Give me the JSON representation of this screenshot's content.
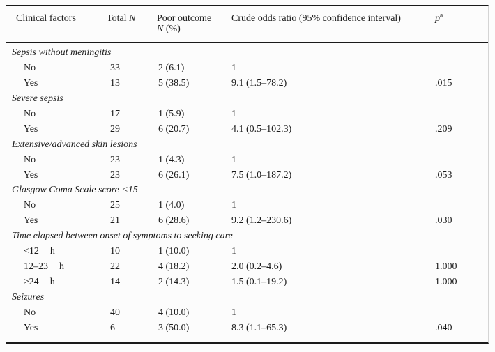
{
  "table": {
    "header": {
      "clinical_factors": "Clinical factors",
      "total_prefix": "Total ",
      "total_n_italic": "N",
      "poor_line1": "Poor outcome",
      "poor_line2_italic": "N",
      "poor_line2_rest": " (%)",
      "odds_ratio": "Crude odds ratio (95% confidence interval)",
      "p_italic": "p",
      "p_sup": "a"
    },
    "rows": [
      {
        "type": "category",
        "label": "Sepsis without meningitis"
      },
      {
        "type": "data",
        "label": "No",
        "unit": "",
        "total": "33",
        "poor": "2 (6.1)",
        "or": "1",
        "p": ""
      },
      {
        "type": "data",
        "label": "Yes",
        "unit": "",
        "total": "13",
        "poor": "5 (38.5)",
        "or": "9.1 (1.5–78.2)",
        "p": ".015"
      },
      {
        "type": "category",
        "label": "Severe sepsis"
      },
      {
        "type": "data",
        "label": "No",
        "unit": "",
        "total": "17",
        "poor": "1 (5.9)",
        "or": "1",
        "p": ""
      },
      {
        "type": "data",
        "label": "Yes",
        "unit": "",
        "total": "29",
        "poor": "6 (20.7)",
        "or": "4.1 (0.5–102.3)",
        "p": ".209"
      },
      {
        "type": "category",
        "label": "Extensive/advanced skin lesions"
      },
      {
        "type": "data",
        "label": "No",
        "unit": "",
        "total": "23",
        "poor": "1 (4.3)",
        "or": "1",
        "p": ""
      },
      {
        "type": "data",
        "label": "Yes",
        "unit": "",
        "total": "23",
        "poor": "6 (26.1)",
        "or": "7.5 (1.0–187.2)",
        "p": ".053"
      },
      {
        "type": "category",
        "label": "Glasgow Coma Scale score <15"
      },
      {
        "type": "data",
        "label": "No",
        "unit": "",
        "total": "25",
        "poor": "1 (4.0)",
        "or": "1",
        "p": ""
      },
      {
        "type": "data",
        "label": "Yes",
        "unit": "",
        "total": "21",
        "poor": "6 (28.6)",
        "or": "9.2 (1.2–230.6)",
        "p": ".030"
      },
      {
        "type": "category",
        "label": "Time elapsed between onset of symptoms to seeking care"
      },
      {
        "type": "data",
        "label": "<12",
        "unit": "h",
        "total": "10",
        "poor": "1 (10.0)",
        "or": "1",
        "p": ""
      },
      {
        "type": "data",
        "label": "12–23",
        "unit": "h",
        "total": "22",
        "poor": "4 (18.2)",
        "or": "2.0 (0.2–4.6)",
        "p": "1.000"
      },
      {
        "type": "data",
        "label": "≥24",
        "unit": "h",
        "total": "14",
        "poor": "2 (14.3)",
        "or": "1.5 (0.1–19.2)",
        "p": "1.000"
      },
      {
        "type": "category",
        "label": "Seizures"
      },
      {
        "type": "data",
        "label": "No",
        "unit": "",
        "total": "40",
        "poor": "4 (10.0)",
        "or": "1",
        "p": ""
      },
      {
        "type": "data",
        "label": "Yes",
        "unit": "",
        "total": "6",
        "poor": "3 (50.0)",
        "or": "8.3 (1.1–65.3)",
        "p": ".040"
      }
    ]
  }
}
